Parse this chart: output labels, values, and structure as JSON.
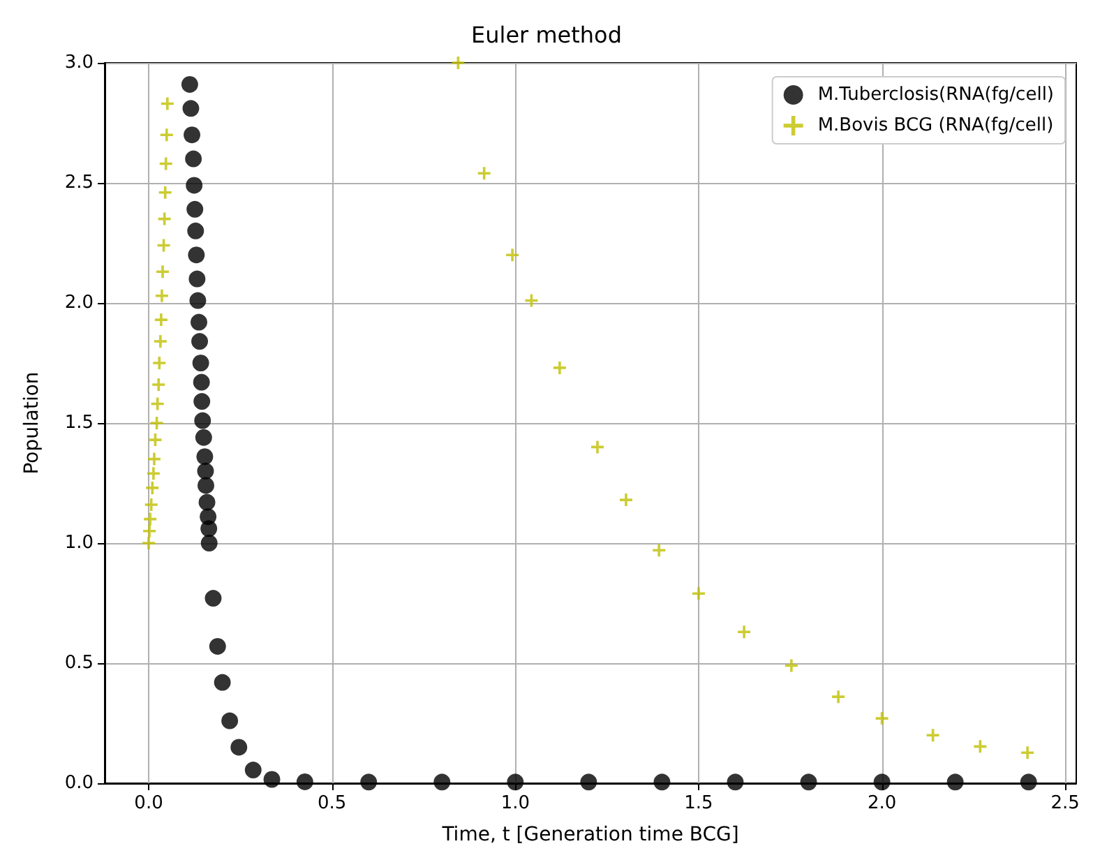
{
  "chart_data": {
    "type": "scatter",
    "title": "Euler method",
    "xlabel": "Time, t [Generation time BCG]",
    "ylabel": "Population",
    "xlim": [
      -0.12,
      2.53
    ],
    "ylim": [
      0,
      3
    ],
    "xticks": [
      {
        "value": 0,
        "label": "0.0"
      },
      {
        "value": 0.5,
        "label": "0.5"
      },
      {
        "value": 1,
        "label": "1.0"
      },
      {
        "value": 1.5,
        "label": "1.5"
      },
      {
        "value": 2,
        "label": "2.0"
      },
      {
        "value": 2.5,
        "label": "2.5"
      }
    ],
    "yticks": [
      {
        "value": 0,
        "label": "0.0"
      },
      {
        "value": 0.5,
        "label": "0.5"
      },
      {
        "value": 1,
        "label": "1.0"
      },
      {
        "value": 1.5,
        "label": "1.5"
      },
      {
        "value": 2,
        "label": "2.0"
      },
      {
        "value": 2.5,
        "label": "2.5"
      },
      {
        "value": 3,
        "label": "3.0"
      }
    ],
    "grid": true,
    "legend": "top right",
    "series": [
      {
        "name": "M.Tuberclosis(RNA(fg/cell)",
        "color": "#000000",
        "marker": "circle",
        "x": [
          0.112,
          0.115,
          0.118,
          0.122,
          0.124,
          0.126,
          0.128,
          0.13,
          0.132,
          0.134,
          0.137,
          0.139,
          0.142,
          0.144,
          0.145,
          0.147,
          0.15,
          0.153,
          0.155,
          0.156,
          0.159,
          0.162,
          0.164,
          0.165,
          0.176,
          0.188,
          0.201,
          0.221,
          0.246,
          0.285,
          0.336,
          0.426,
          0.6,
          0.8,
          1.0,
          1.2,
          1.4,
          1.6,
          1.8,
          2.0,
          2.2,
          2.4
        ],
        "values": [
          2.91,
          2.81,
          2.7,
          2.6,
          2.49,
          2.39,
          2.3,
          2.2,
          2.1,
          2.01,
          1.92,
          1.84,
          1.75,
          1.67,
          1.59,
          1.51,
          1.44,
          1.36,
          1.3,
          1.24,
          1.17,
          1.11,
          1.06,
          1.0,
          0.77,
          0.57,
          0.42,
          0.26,
          0.15,
          0.055,
          0.016,
          0.006,
          0.005,
          0.005,
          0.005,
          0.005,
          0.005,
          0.005,
          0.005,
          0.005,
          0.005,
          0.005
        ]
      },
      {
        "name": "M.Bovis BCG (RNA(fg/cell)",
        "color": "#bfbf00",
        "marker": "cross",
        "x": [
          0.0,
          0.002,
          0.004,
          0.007,
          0.01,
          0.013,
          0.015,
          0.018,
          0.022,
          0.024,
          0.027,
          0.029,
          0.032,
          0.034,
          0.036,
          0.038,
          0.041,
          0.043,
          0.045,
          0.047,
          0.049,
          0.051
        ],
        "values": [
          1.0,
          1.05,
          1.1,
          1.16,
          1.23,
          1.29,
          1.35,
          1.43,
          1.5,
          1.58,
          1.66,
          1.75,
          1.84,
          1.93,
          2.03,
          2.13,
          2.24,
          2.35,
          2.46,
          2.58,
          2.7,
          2.83
        ]
      },
      {
        "color": "#bfbf00",
        "marker": "cross",
        "x": [
          0.844,
          0.915,
          0.992,
          1.044,
          1.121,
          1.224,
          1.302,
          1.392,
          1.5,
          1.624,
          1.753,
          1.881,
          2.0,
          2.139,
          2.268,
          2.397
        ],
        "values": [
          3.0,
          2.54,
          2.2,
          2.01,
          1.73,
          1.4,
          1.18,
          0.97,
          0.79,
          0.63,
          0.49,
          0.36,
          0.27,
          0.2,
          0.153,
          0.127
        ]
      }
    ]
  }
}
